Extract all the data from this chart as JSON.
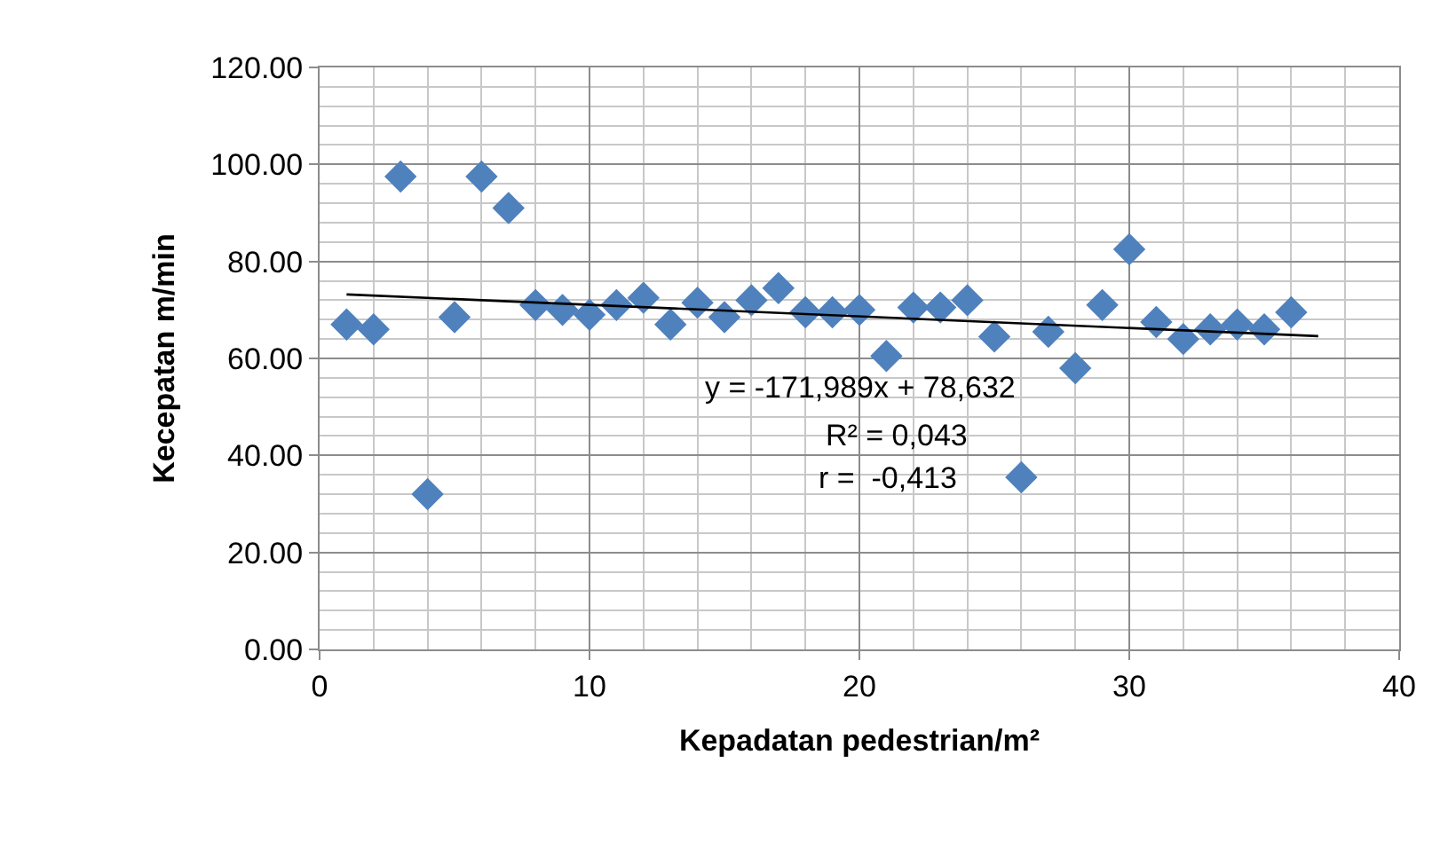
{
  "chart_data": {
    "type": "scatter",
    "xlabel": "Kepadatan pedestrian/m²",
    "ylabel": "Kecepatan m/min",
    "xlim": [
      0,
      40
    ],
    "xticks": [
      0,
      10,
      20,
      30,
      40
    ],
    "ylim": [
      0,
      120
    ],
    "yticks": [
      {
        "value": 0,
        "label": "0.00"
      },
      {
        "value": 20,
        "label": "20.00"
      },
      {
        "value": 40,
        "label": "40.00"
      },
      {
        "value": 60,
        "label": "60.00"
      },
      {
        "value": 80,
        "label": "80.00"
      },
      {
        "value": 100,
        "label": "100.00"
      },
      {
        "value": 120,
        "label": "120.00"
      }
    ],
    "grid": true,
    "legend": false,
    "series": [
      {
        "color": "#4f81bd",
        "marker": "diamond",
        "x": [
          1,
          2,
          3,
          4,
          5,
          6,
          7,
          8,
          9,
          10,
          11,
          12,
          13,
          14,
          15,
          16,
          17,
          18,
          19,
          20,
          21,
          22,
          23,
          24,
          25,
          26,
          27,
          28,
          29,
          30,
          31,
          32,
          33,
          34,
          35,
          36
        ],
        "values": [
          67,
          66,
          97.5,
          32,
          68.5,
          97.5,
          91,
          71,
          70,
          69,
          71,
          72.5,
          67,
          71.5,
          68.5,
          72,
          74.5,
          69.5,
          69.5,
          70,
          60.5,
          70.5,
          70.5,
          72,
          64.5,
          35.5,
          65.5,
          58,
          71,
          82.5,
          67.5,
          64,
          66,
          67,
          66,
          69.5
        ]
      },
      {
        "type": "line",
        "color": "#000000",
        "x": [
          1,
          37
        ],
        "values": [
          73.2,
          64.6
        ]
      }
    ],
    "annotations": [
      "y = -171,989x + 78,632",
      "R² = 0,043",
      "r =  -0,413"
    ]
  }
}
